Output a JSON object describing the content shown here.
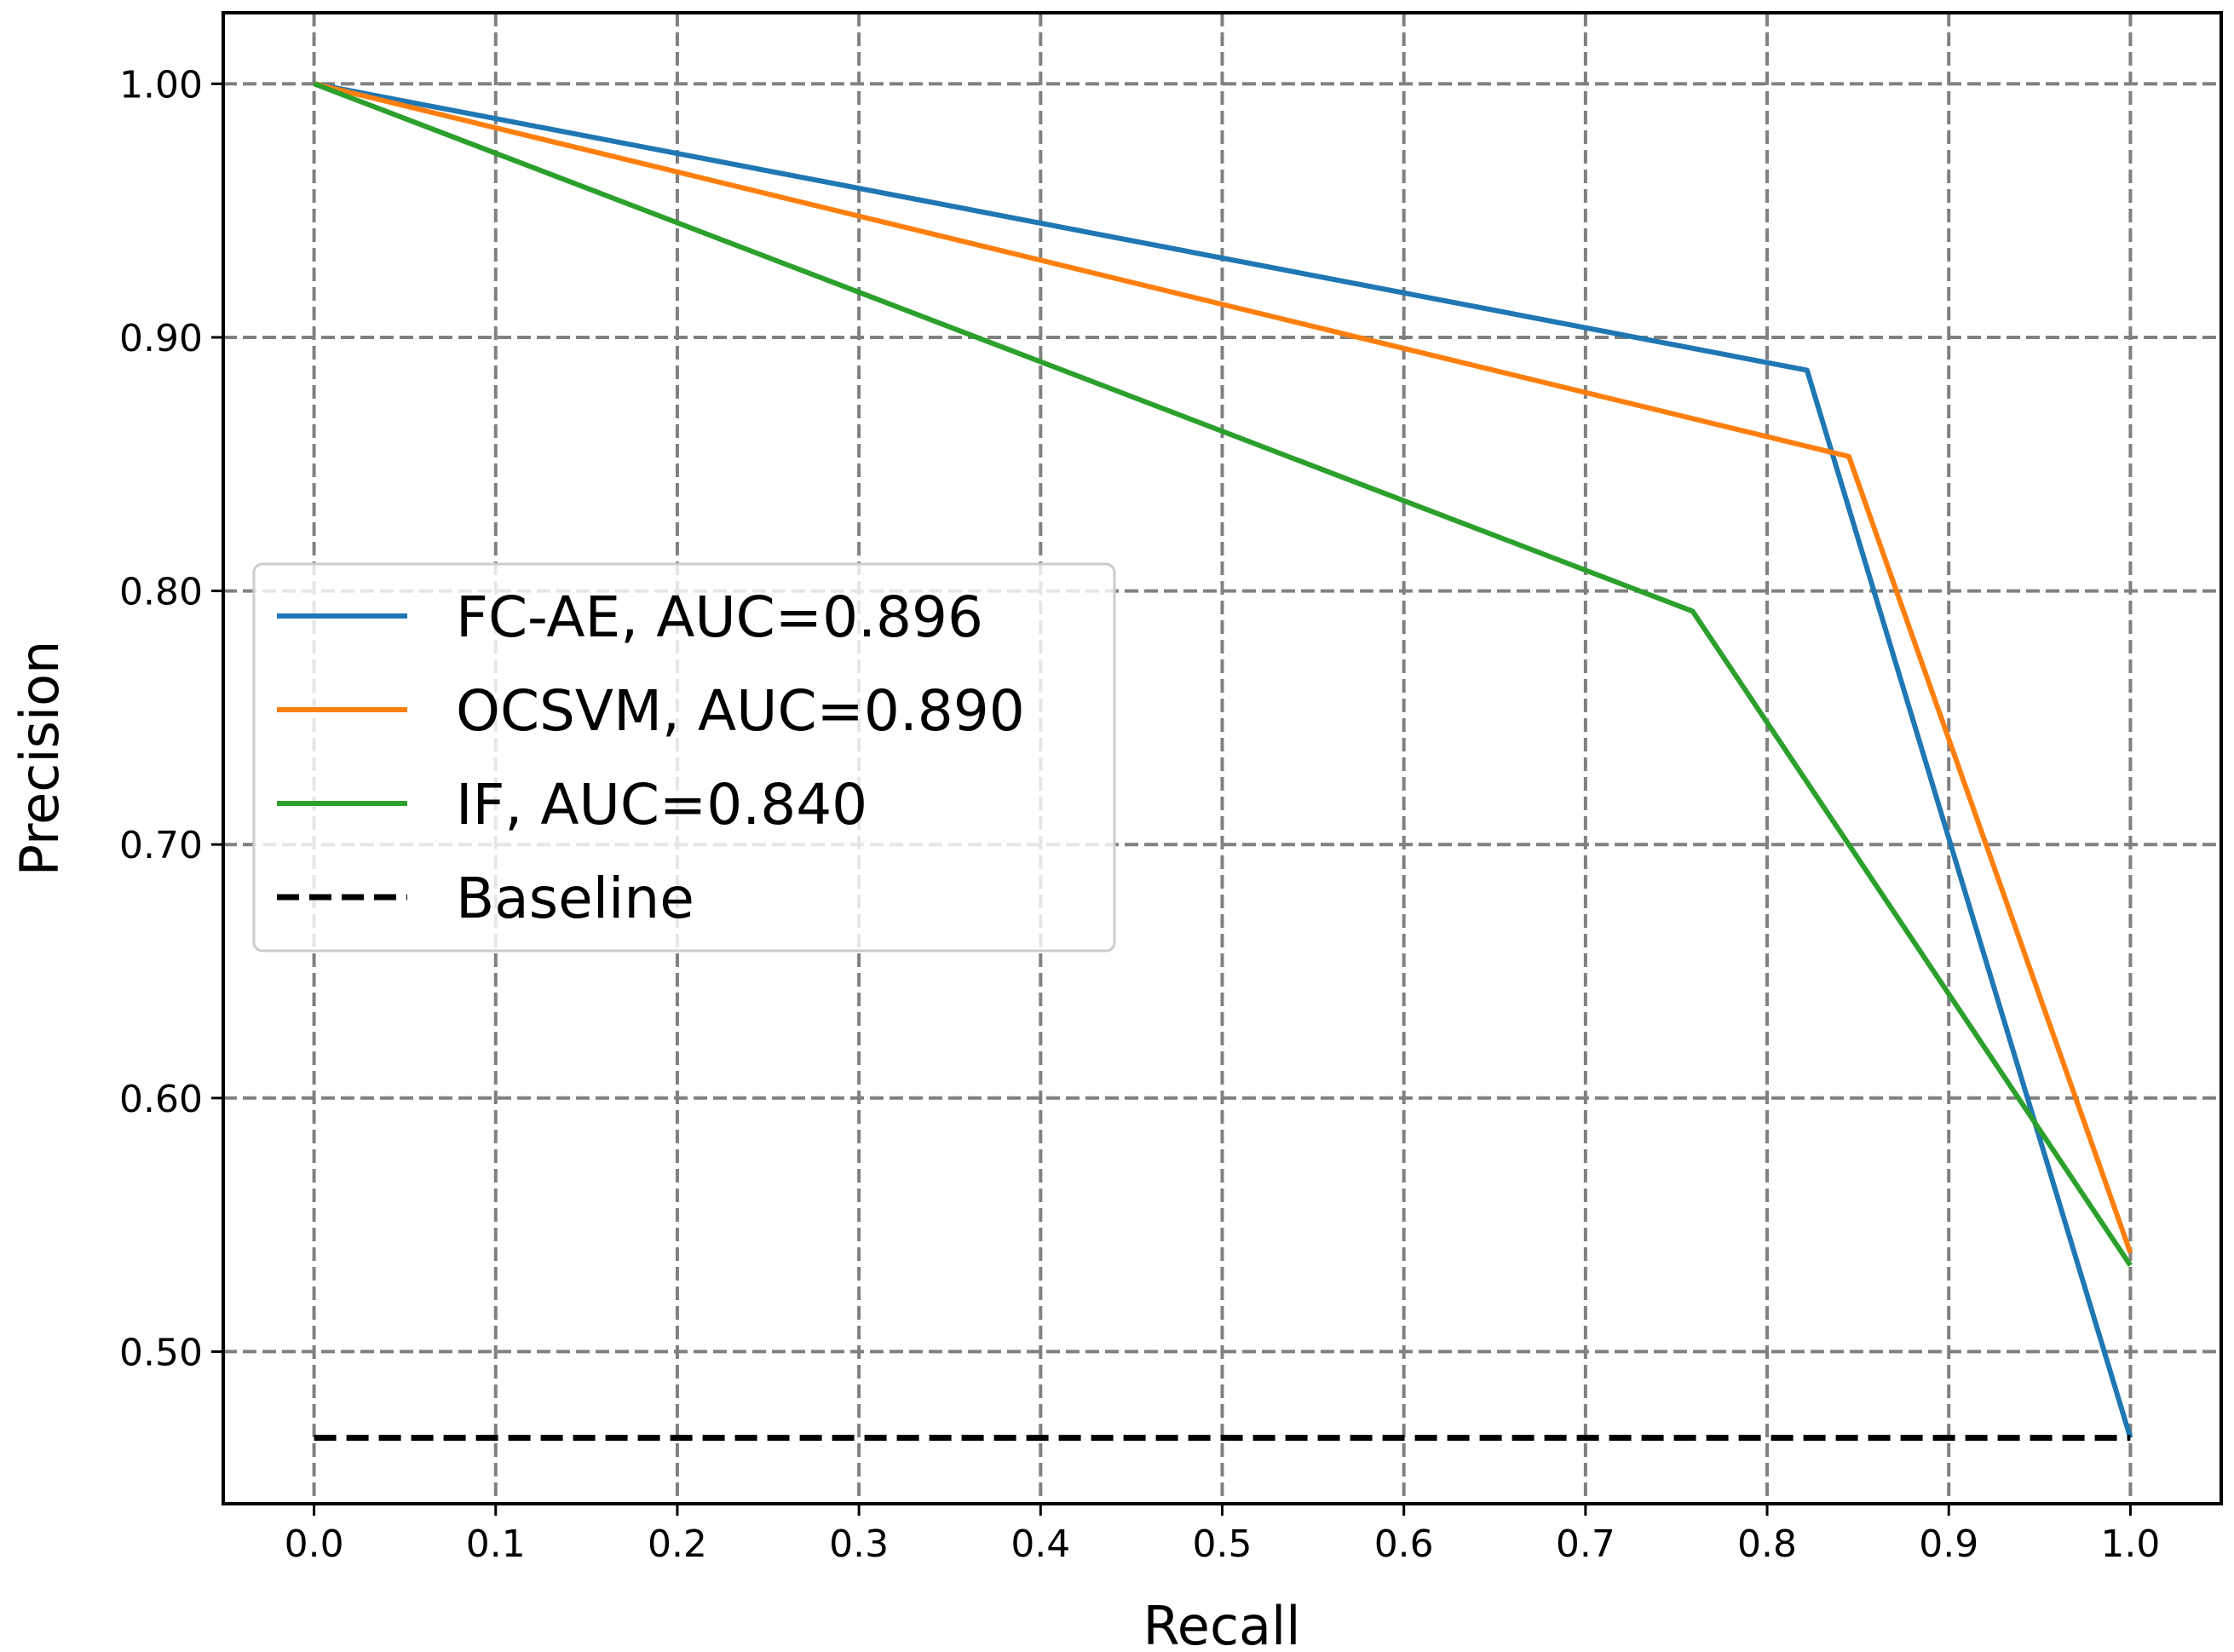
{
  "chart_data": {
    "type": "line",
    "title": "",
    "xlabel": "Recall",
    "ylabel": "Precision",
    "xlim": [
      -0.05,
      1.05
    ],
    "ylim": [
      0.44,
      1.028
    ],
    "xticks": [
      0.0,
      0.1,
      0.2,
      0.3,
      0.4,
      0.5,
      0.6,
      0.7,
      0.8,
      0.9,
      1.0
    ],
    "xtick_labels": [
      "0.0",
      "0.1",
      "0.2",
      "0.3",
      "0.4",
      "0.5",
      "0.6",
      "0.7",
      "0.8",
      "0.9",
      "1.0"
    ],
    "yticks": [
      0.5,
      0.6,
      0.7,
      0.8,
      0.9,
      1.0
    ],
    "ytick_labels": [
      "0.50",
      "0.60",
      "0.70",
      "0.80",
      "0.90",
      "1.00"
    ],
    "grid": true,
    "grid_style": "dashed",
    "legend_position": "center-left",
    "series": [
      {
        "name": "FC-AE, AUC=0.896",
        "color": "#1f77b4",
        "dashed": false,
        "x": [
          0.0,
          0.822,
          1.0
        ],
        "y": [
          1.0,
          0.887,
          0.466
        ]
      },
      {
        "name": "OCSVM, AUC=0.890",
        "color": "#ff7f0e",
        "dashed": false,
        "x": [
          0.0,
          0.845,
          1.0
        ],
        "y": [
          1.0,
          0.853,
          0.539
        ]
      },
      {
        "name": "IF, AUC=0.840",
        "color": "#2ca02c",
        "dashed": false,
        "x": [
          0.0,
          0.759,
          1.0
        ],
        "y": [
          1.0,
          0.792,
          0.534
        ]
      },
      {
        "name": "Baseline",
        "color": "#000000",
        "dashed": true,
        "x": [
          0.0,
          1.0
        ],
        "y": [
          0.466,
          0.466
        ]
      }
    ]
  }
}
